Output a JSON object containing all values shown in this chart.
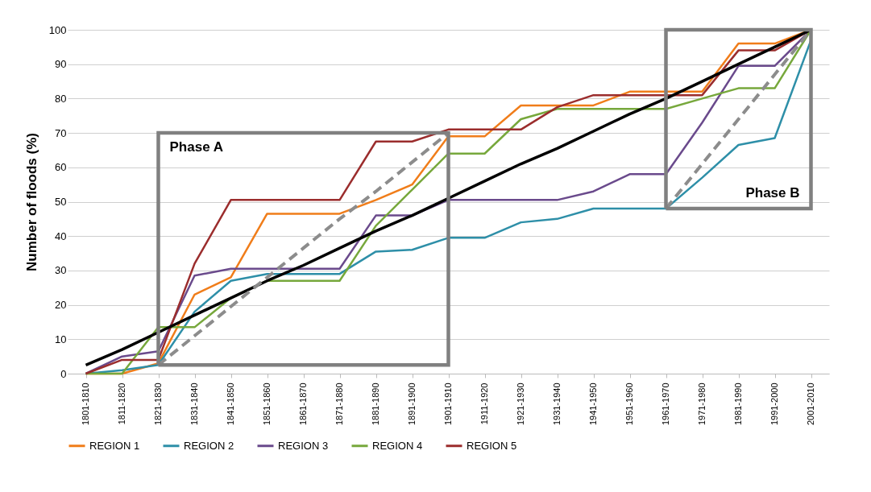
{
  "chart_data": {
    "type": "line",
    "ylabel": "Number of floods (%)",
    "categories": [
      "1801-1810",
      "1811-1820",
      "1821-1830",
      "1831-1840",
      "1841-1850",
      "1851-1860",
      "1861-1870",
      "1871-1880",
      "1881-1890",
      "1891-1900",
      "1901-1910",
      "1911-1920",
      "1921-1930",
      "1931-1940",
      "1941-1950",
      "1951-1960",
      "1961-1970",
      "1971-1980",
      "1981-1990",
      "1991-2000",
      "2001-2010"
    ],
    "series": [
      {
        "name": "REGION 1",
        "color": "#f07d1a",
        "values": [
          0,
          0,
          3,
          23,
          28,
          46.5,
          46.5,
          46.5,
          50.5,
          55,
          69,
          69,
          78,
          78,
          78,
          82,
          82,
          82,
          96,
          96,
          100
        ]
      },
      {
        "name": "REGION 2",
        "color": "#2e8fa8",
        "values": [
          0,
          1,
          2.5,
          18,
          27,
          29,
          29,
          29,
          35.5,
          36,
          39.5,
          39.5,
          44,
          45,
          48,
          48,
          48,
          57,
          66.5,
          68.5,
          97
        ]
      },
      {
        "name": "REGION 3",
        "color": "#6a4a8c",
        "values": [
          0,
          5,
          6.5,
          28.5,
          30.5,
          30.5,
          30.5,
          30.5,
          46,
          46,
          50.5,
          50.5,
          50.5,
          50.5,
          53,
          58,
          58,
          73,
          89.5,
          89.5,
          100
        ]
      },
      {
        "name": "REGION 4",
        "color": "#77a83c",
        "values": [
          0,
          0,
          13.5,
          13.5,
          22,
          27,
          27,
          27,
          43,
          53.5,
          64,
          64,
          74,
          77,
          77,
          77,
          77,
          80,
          83,
          83,
          100
        ]
      },
      {
        "name": "REGION 5",
        "color": "#9b2d2d",
        "values": [
          0,
          4,
          4,
          32,
          50.5,
          50.5,
          50.5,
          50.5,
          67.5,
          67.5,
          71,
          71,
          71,
          77.5,
          81,
          81,
          81,
          81,
          94,
          94,
          100
        ]
      },
      {
        "color": "#000000",
        "values": [
          2.5,
          7,
          12,
          17,
          22,
          27,
          31.5,
          36.5,
          41.5,
          46,
          51,
          56,
          61,
          65.5,
          70.5,
          75.5,
          80,
          85,
          90,
          95,
          100
        ]
      },
      {
        "color": "#8c8c8c",
        "line_style": "dashed",
        "values": [
          null,
          null,
          2.5,
          11,
          19.5,
          28,
          36.5,
          45,
          53,
          61.5,
          70,
          null,
          null,
          null,
          null,
          null,
          null,
          null,
          null,
          null,
          null
        ]
      },
      {
        "color": "#8c8c8c",
        "line_style": "dashed",
        "values": [
          null,
          null,
          null,
          null,
          null,
          null,
          null,
          null,
          null,
          null,
          null,
          null,
          null,
          null,
          null,
          null,
          48,
          61,
          74,
          87,
          100
        ]
      }
    ],
    "ylim": [
      0,
      100
    ],
    "yticks": [
      0,
      10,
      20,
      30,
      40,
      50,
      60,
      70,
      80,
      90,
      100
    ],
    "grid": "y",
    "legend": "bottom",
    "annotations": [
      "Phase A",
      "Phase B"
    ]
  }
}
